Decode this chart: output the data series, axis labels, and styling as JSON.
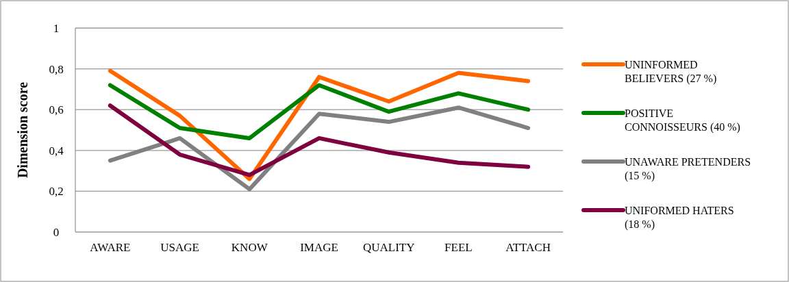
{
  "chart_data": {
    "type": "line",
    "ylabel": "Dimension score",
    "categories": [
      "AWARE",
      "USAGE",
      "KNOW",
      "IMAGE",
      "QUALITY",
      "FEEL",
      "ATTACH"
    ],
    "series": [
      {
        "name": "UNINFORMED BELIEVERS (27 %)",
        "color": "#ff6600",
        "values": [
          0.79,
          0.57,
          0.26,
          0.76,
          0.64,
          0.78,
          0.74
        ]
      },
      {
        "name": "POSITIVE CONNOISSEURS (40 %)",
        "color": "#008000",
        "values": [
          0.72,
          0.51,
          0.46,
          0.72,
          0.59,
          0.68,
          0.6
        ]
      },
      {
        "name": "UNAWARE PRETENDERS (15 %)",
        "color": "#808080",
        "values": [
          0.35,
          0.46,
          0.21,
          0.58,
          0.54,
          0.61,
          0.51
        ]
      },
      {
        "name": "UNIFORMED HATERS (18 %)",
        "color": "#7f003f",
        "values": [
          0.62,
          0.38,
          0.28,
          0.46,
          0.39,
          0.34,
          0.32
        ]
      }
    ],
    "ylim": [
      0,
      1
    ],
    "yticks": [
      0,
      {
        "value": 0.2,
        "label": "0,2"
      },
      {
        "value": 0.4,
        "label": "0,4"
      },
      {
        "value": 0.6,
        "label": "0,6"
      },
      {
        "value": 0.8,
        "label": "0,8"
      },
      1
    ],
    "grid": "y",
    "legend": "right",
    "marker": "none",
    "line_style": "solid"
  }
}
